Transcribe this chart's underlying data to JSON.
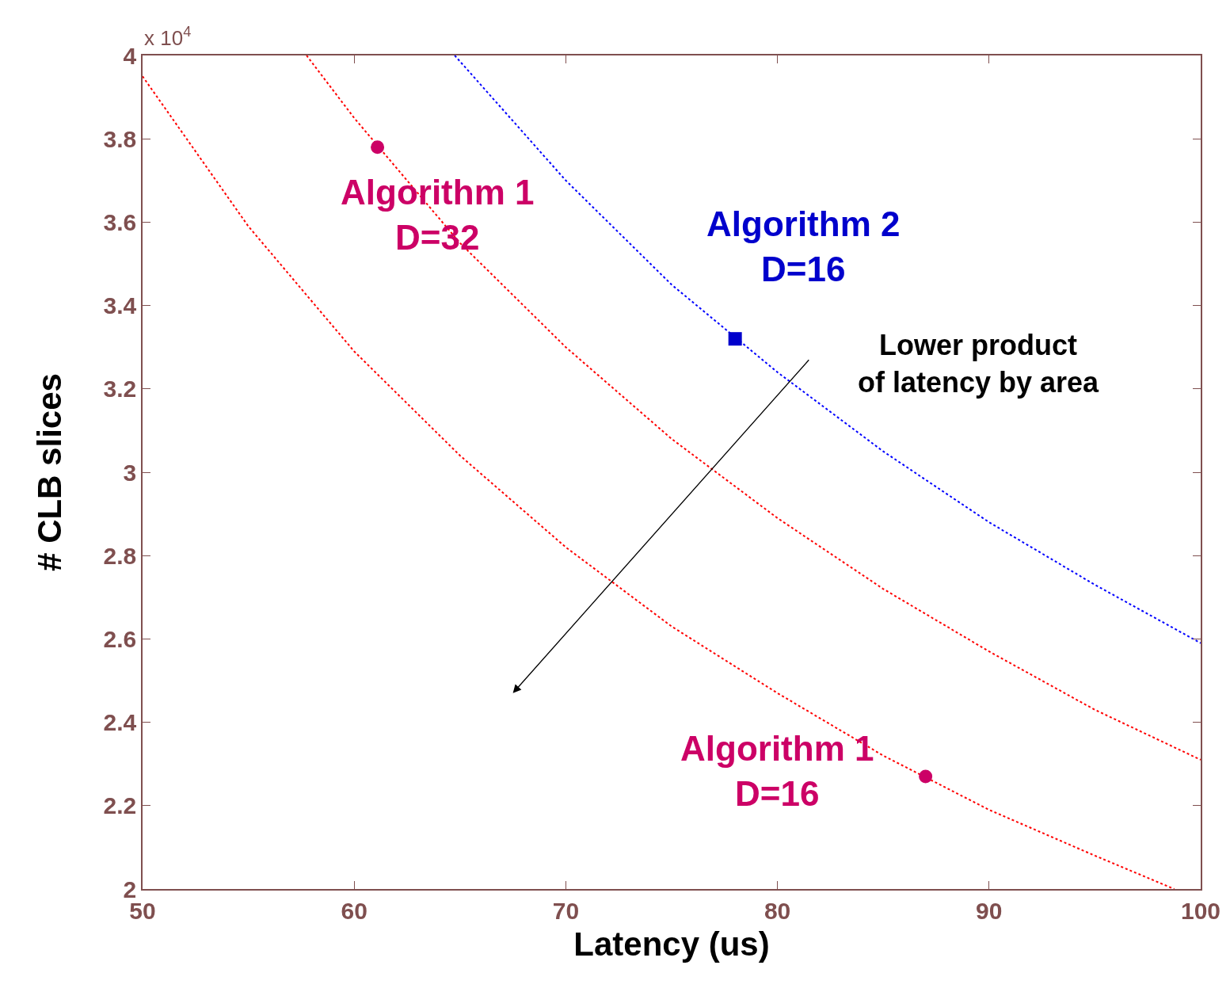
{
  "chart_data": {
    "type": "line",
    "xlabel": "Latency (us)",
    "ylabel": "# CLB slices",
    "xlim": [
      50,
      100
    ],
    "xticks": [
      50,
      60,
      70,
      80,
      90,
      100
    ],
    "ylim": [
      2,
      4
    ],
    "yticks": [
      2,
      2.2,
      2.4,
      2.6,
      2.8,
      3,
      3.2,
      3.4,
      3.6,
      3.8,
      4
    ],
    "line_style": "dotted",
    "series": [
      {
        "color": "#ff0000",
        "x": [
          50,
          55,
          60,
          65,
          70,
          75,
          80,
          85,
          90,
          95,
          98.75
        ],
        "values": [
          3.95,
          3.59,
          3.29,
          3.04,
          2.82,
          2.63,
          2.47,
          2.32,
          2.19,
          2.08,
          2.0
        ]
      },
      {
        "color": "#ff0000",
        "x": [
          57.75,
          60,
          65,
          70,
          75,
          80,
          85,
          90,
          95,
          100
        ],
        "values": [
          4.0,
          3.85,
          3.55,
          3.3,
          3.08,
          2.89,
          2.72,
          2.57,
          2.43,
          2.31
        ]
      },
      {
        "color": "#0000ff",
        "x": [
          64.75,
          70,
          75,
          80,
          85,
          90,
          95,
          100
        ],
        "values": [
          4.0,
          3.7,
          3.45,
          3.24,
          3.05,
          2.88,
          2.73,
          2.59
        ]
      },
      {
        "type": "scatter",
        "marker": "circle",
        "name": "Algorithm 1\nD=32",
        "color": "#cc0066",
        "x": [
          61.1
        ],
        "values": [
          3.78
        ]
      },
      {
        "type": "scatter",
        "marker": "square",
        "name": "Algorithm 2\nD=16",
        "color": "#0000cc",
        "x": [
          78
        ],
        "values": [
          3.32
        ]
      },
      {
        "type": "scatter",
        "marker": "circle",
        "name": "Algorithm 1\nD=16",
        "color": "#cc0066",
        "x": [
          87
        ],
        "values": [
          2.27
        ]
      }
    ],
    "annotations": [
      "x 10$^{4}$",
      "Lower product\nof latency by area"
    ]
  }
}
